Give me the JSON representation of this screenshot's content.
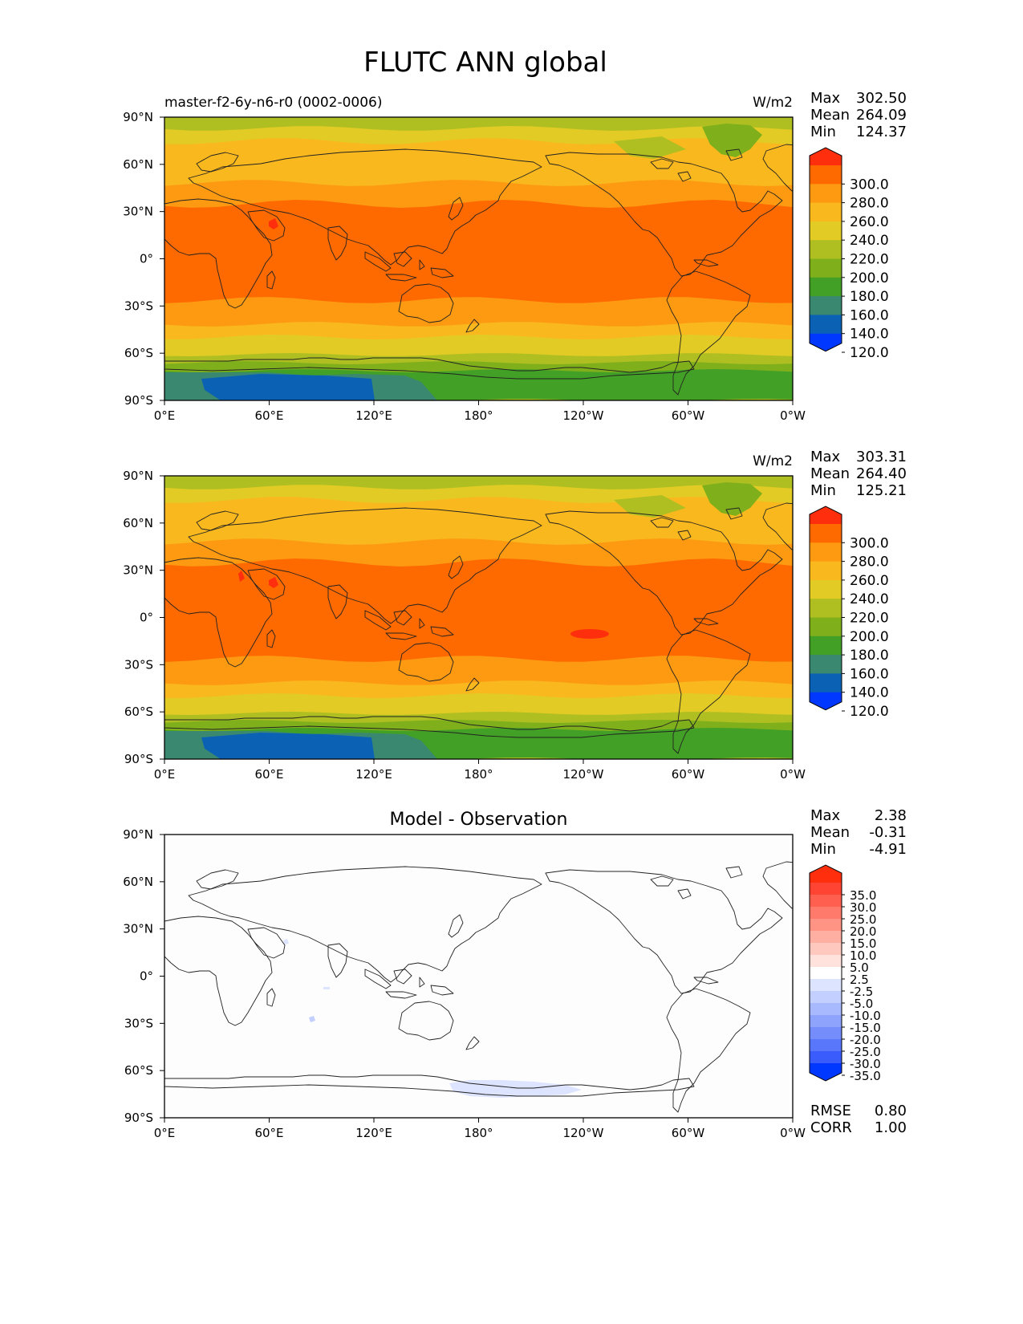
{
  "figure_title": "FLUTC ANN global",
  "lon_ticks": [
    "0°E",
    "60°E",
    "120°E",
    "180°",
    "120°W",
    "60°W",
    "0°W"
  ],
  "lat_ticks": [
    "90°N",
    "60°N",
    "30°N",
    "0°",
    "30°S",
    "60°S",
    "90°S"
  ],
  "panels": [
    {
      "title_left": "master-f2-6y-n6-r0 (0002-0006)",
      "title_center": "",
      "units": "W/m2",
      "stats": [
        {
          "label": "Max",
          "value": "302.50"
        },
        {
          "label": "Mean",
          "value": "264.09"
        },
        {
          "label": "Min",
          "value": "124.37"
        }
      ],
      "colorbar": {
        "levels": [
          "300.0",
          "280.0",
          "260.0",
          "240.0",
          "220.0",
          "200.0",
          "180.0",
          "160.0",
          "140.0",
          "120.0"
        ],
        "colors": [
          "#ff2e0d",
          "#ff6a00",
          "#fd9a12",
          "#f9b81e",
          "#e2cb24",
          "#afbf21",
          "#7fb01c",
          "#43a026",
          "#3a8870",
          "#0b62b4",
          "#0038ff"
        ]
      },
      "features": "model"
    },
    {
      "title_left": "",
      "title_center": "",
      "units": "W/m2",
      "stats": [
        {
          "label": "Max",
          "value": "303.31"
        },
        {
          "label": "Mean",
          "value": "264.40"
        },
        {
          "label": "Min",
          "value": "125.21"
        }
      ],
      "colorbar": {
        "levels": [
          "300.0",
          "280.0",
          "260.0",
          "240.0",
          "220.0",
          "200.0",
          "180.0",
          "160.0",
          "140.0",
          "120.0"
        ],
        "colors": [
          "#ff2e0d",
          "#ff6a00",
          "#fd9a12",
          "#f9b81e",
          "#e2cb24",
          "#afbf21",
          "#7fb01c",
          "#43a026",
          "#3a8870",
          "#0b62b4",
          "#0038ff"
        ]
      },
      "features": "obs"
    },
    {
      "title_left": "",
      "title_center": "Model - Observation",
      "units": "",
      "stats": [
        {
          "label": "Max",
          "value": "2.38"
        },
        {
          "label": "Mean",
          "value": "-0.31"
        },
        {
          "label": "Min",
          "value": "-4.91"
        }
      ],
      "extra_stats": [
        {
          "label": "RMSE",
          "value": "0.80"
        },
        {
          "label": "CORR",
          "value": "1.00"
        }
      ],
      "colorbar": {
        "levels": [
          "35.0",
          "30.0",
          "25.0",
          "20.0",
          "15.0",
          "10.0",
          "5.0",
          "2.5",
          "-2.5",
          "-5.0",
          "-10.0",
          "-15.0",
          "-20.0",
          "-25.0",
          "-30.0",
          "-35.0"
        ],
        "colors": [
          "#ff2e0d",
          "#ff4433",
          "#ff5f4f",
          "#ff7a6a",
          "#ff9485",
          "#ffaea2",
          "#ffc8bf",
          "#ffe2dc",
          "#ffffff",
          "#dde4ff",
          "#c3cffe",
          "#a8b9fd",
          "#8ea3fc",
          "#748dfb",
          "#5977fa",
          "#3a5cfc",
          "#0038ff"
        ]
      },
      "features": "diff"
    }
  ],
  "chart_data": {
    "type": "heatmap",
    "title": "FLUTC ANN global",
    "variable": "FLUTC",
    "season": "ANN",
    "units": "W/m2",
    "x_ticks": [
      "0°E",
      "60°E",
      "120°E",
      "180°",
      "120°W",
      "60°W",
      "0°W"
    ],
    "y_ticks": [
      "90°N",
      "60°N",
      "30°N",
      "0°",
      "30°S",
      "60°S",
      "90°S"
    ],
    "xlim": [
      0,
      360
    ],
    "ylim": [
      -90,
      90
    ],
    "panels": [
      {
        "name": "master-f2-6y-n6-r0 (0002-0006)",
        "max": 302.5,
        "mean": 264.09,
        "min": 124.37,
        "contour_levels": [
          120,
          140,
          160,
          180,
          200,
          220,
          240,
          260,
          280,
          300
        ]
      },
      {
        "name": "",
        "max": 303.31,
        "mean": 264.4,
        "min": 125.21,
        "contour_levels": [
          120,
          140,
          160,
          180,
          200,
          220,
          240,
          260,
          280,
          300
        ]
      },
      {
        "name": "Model - Observation",
        "max": 2.38,
        "mean": -0.31,
        "min": -4.91,
        "rmse": 0.8,
        "corr": 1.0,
        "contour_levels": [
          -35,
          -30,
          -25,
          -20,
          -15,
          -10,
          -5,
          -2.5,
          2.5,
          5,
          10,
          15,
          20,
          25,
          30,
          35
        ]
      }
    ]
  }
}
